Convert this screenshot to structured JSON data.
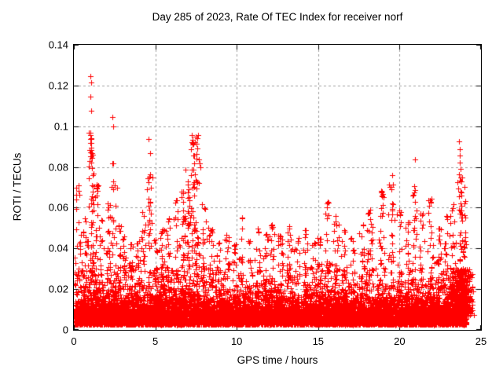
{
  "chart_data": {
    "type": "scatter",
    "title": "Day 285 of 2023, Rate Of TEC Index for receiver norf",
    "xlabel": "GPS time / hours",
    "ylabel": "ROTI / TECUs",
    "xlim": [
      0,
      25
    ],
    "ylim": [
      0,
      0.14
    ],
    "xticks": [
      0,
      5,
      10,
      15,
      20,
      25
    ],
    "yticks": [
      0,
      0.02,
      0.04,
      0.06,
      0.08,
      0.1,
      0.12,
      0.14
    ],
    "grid": true,
    "grid_style": "dashed",
    "grid_color": "#9e9e9e",
    "axis_color": "#000000",
    "background_color": "#ffffff",
    "legend": null,
    "marker": "+",
    "marker_size_px": 7,
    "marker_color": "#ff0000",
    "x_data_range": [
      0.05,
      24.1
    ],
    "baseline_noise": {
      "description": "dense carpet of ROTI values at all hours",
      "count": 9000,
      "y_min": 0.0025,
      "exp_mean": 0.0055,
      "y_cap": 0.046,
      "seed": 285
    },
    "spike_clusters_hour_peak_count_width": [
      [
        0.25,
        0.071,
        40,
        0.22
      ],
      [
        0.7,
        0.055,
        30,
        0.22
      ],
      [
        1.05,
        0.097,
        85,
        0.22
      ],
      [
        1.4,
        0.073,
        45,
        0.22
      ],
      [
        1.7,
        0.054,
        30,
        0.22
      ],
      [
        2.1,
        0.062,
        35,
        0.22
      ],
      [
        2.45,
        0.082,
        45,
        0.22
      ],
      [
        2.8,
        0.052,
        30,
        0.22
      ],
      [
        3.1,
        0.047,
        30,
        0.22
      ],
      [
        3.5,
        0.042,
        28,
        0.22
      ],
      [
        3.9,
        0.044,
        28,
        0.22
      ],
      [
        4.25,
        0.058,
        32,
        0.22
      ],
      [
        4.65,
        0.078,
        40,
        0.22
      ],
      [
        5.0,
        0.045,
        28,
        0.22
      ],
      [
        5.4,
        0.05,
        30,
        0.22
      ],
      [
        5.8,
        0.055,
        32,
        0.22
      ],
      [
        6.3,
        0.065,
        36,
        0.22
      ],
      [
        6.7,
        0.07,
        40,
        0.22
      ],
      [
        7.0,
        0.075,
        42,
        0.22
      ],
      [
        7.3,
        0.096,
        55,
        0.22
      ],
      [
        7.6,
        0.094,
        45,
        0.22
      ],
      [
        8.0,
        0.062,
        36,
        0.22
      ],
      [
        8.4,
        0.05,
        30,
        0.22
      ],
      [
        8.9,
        0.044,
        28,
        0.22
      ],
      [
        9.4,
        0.047,
        28,
        0.22
      ],
      [
        9.9,
        0.043,
        26,
        0.22
      ],
      [
        10.3,
        0.056,
        32,
        0.22
      ],
      [
        10.8,
        0.045,
        28,
        0.22
      ],
      [
        11.3,
        0.05,
        30,
        0.22
      ],
      [
        11.8,
        0.047,
        28,
        0.22
      ],
      [
        12.2,
        0.053,
        32,
        0.22
      ],
      [
        12.7,
        0.048,
        28,
        0.22
      ],
      [
        13.2,
        0.051,
        30,
        0.22
      ],
      [
        13.7,
        0.045,
        26,
        0.22
      ],
      [
        14.2,
        0.049,
        28,
        0.22
      ],
      [
        14.7,
        0.043,
        26,
        0.22
      ],
      [
        15.1,
        0.047,
        28,
        0.22
      ],
      [
        15.6,
        0.063,
        34,
        0.22
      ],
      [
        16.1,
        0.056,
        32,
        0.22
      ],
      [
        16.6,
        0.049,
        28,
        0.22
      ],
      [
        17.1,
        0.045,
        26,
        0.22
      ],
      [
        17.7,
        0.053,
        30,
        0.22
      ],
      [
        18.2,
        0.06,
        34,
        0.22
      ],
      [
        18.9,
        0.068,
        40,
        0.22
      ],
      [
        19.5,
        0.072,
        40,
        0.22
      ],
      [
        20.0,
        0.059,
        34,
        0.22
      ],
      [
        20.5,
        0.053,
        30,
        0.22
      ],
      [
        20.9,
        0.071,
        40,
        0.22
      ],
      [
        21.4,
        0.058,
        32,
        0.22
      ],
      [
        21.9,
        0.065,
        36,
        0.22
      ],
      [
        22.4,
        0.052,
        30,
        0.22
      ],
      [
        22.9,
        0.056,
        32,
        0.22
      ],
      [
        23.3,
        0.062,
        40,
        0.22
      ],
      [
        23.75,
        0.075,
        55,
        0.22
      ],
      [
        23.8,
        0.03,
        320,
        0.8
      ],
      [
        24.0,
        0.065,
        40,
        0.15
      ]
    ],
    "extreme_points_hour_roti": [
      [
        1.02,
        0.1245
      ],
      [
        1.07,
        0.1215
      ],
      [
        1.03,
        0.1146
      ],
      [
        1.04,
        0.1076
      ],
      [
        1.0,
        0.0958
      ],
      [
        1.05,
        0.0938
      ],
      [
        1.0,
        0.0916
      ],
      [
        1.06,
        0.0896
      ],
      [
        1.01,
        0.0872
      ],
      [
        1.05,
        0.0852
      ],
      [
        2.38,
        0.1045
      ],
      [
        2.43,
        0.0998
      ],
      [
        4.6,
        0.0937
      ],
      [
        4.66,
        0.0868
      ],
      [
        7.25,
        0.0956
      ],
      [
        7.62,
        0.0956
      ],
      [
        7.3,
        0.0912
      ],
      [
        7.58,
        0.0892
      ],
      [
        7.32,
        0.0856
      ],
      [
        7.55,
        0.0842
      ],
      [
        6.85,
        0.0788
      ],
      [
        15.62,
        0.0625
      ],
      [
        18.85,
        0.0682
      ],
      [
        19.55,
        0.0758
      ],
      [
        19.6,
        0.0712
      ],
      [
        20.95,
        0.0838
      ],
      [
        20.9,
        0.0705
      ],
      [
        21.95,
        0.0645
      ],
      [
        23.65,
        0.0926
      ],
      [
        23.68,
        0.0888
      ],
      [
        23.72,
        0.0858
      ],
      [
        23.7,
        0.0822
      ],
      [
        23.74,
        0.0792
      ],
      [
        23.66,
        0.0762
      ],
      [
        23.7,
        0.0732
      ],
      [
        24.0,
        0.0702
      ]
    ]
  }
}
